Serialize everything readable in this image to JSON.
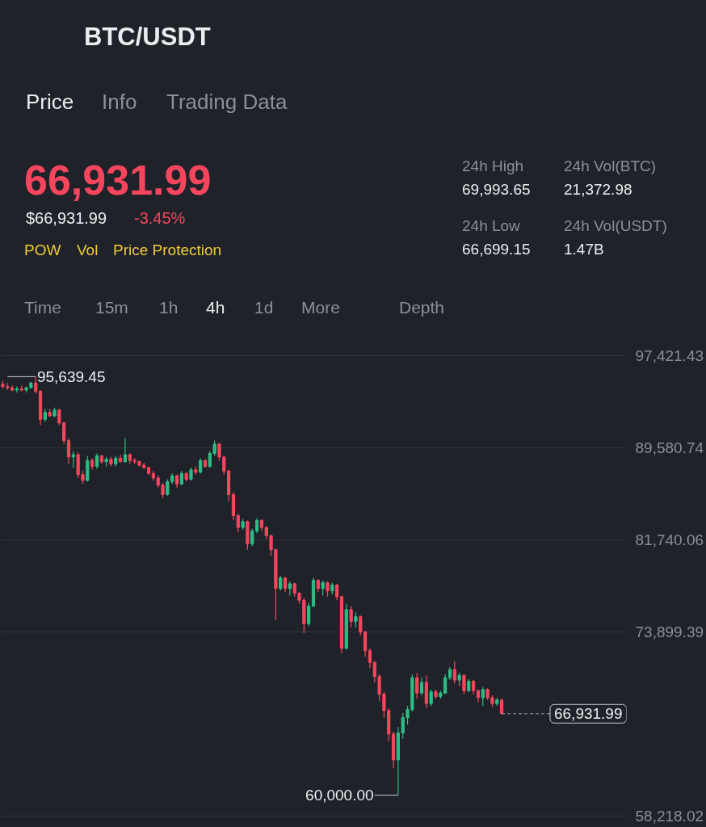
{
  "chart_data": {
    "type": "candlestick",
    "title": "BTC/USDT",
    "categories": [
      null,
      null,
      null,
      null,
      null,
      null,
      null,
      null,
      null,
      null,
      null,
      null,
      null,
      null,
      null,
      null,
      null,
      null,
      null,
      null,
      null,
      null,
      null,
      null,
      null,
      null,
      null,
      null,
      null,
      null,
      null,
      null,
      null,
      null,
      null,
      null,
      null,
      null,
      null,
      null,
      null,
      null,
      null,
      null,
      null,
      null,
      null,
      null,
      null,
      null,
      null,
      null,
      null,
      null,
      null,
      null,
      null,
      null,
      null,
      null,
      null,
      null,
      null,
      null,
      null,
      null,
      null,
      null,
      null,
      null,
      null,
      null,
      null,
      null,
      null,
      null,
      null,
      null,
      null,
      null,
      null,
      null,
      null,
      null,
      null,
      null,
      null,
      null,
      null,
      null,
      null,
      null,
      null,
      null,
      null,
      null,
      null,
      null,
      null,
      null,
      null,
      null,
      null,
      null,
      null,
      null,
      null,
      null,
      null,
      null,
      null,
      null,
      null,
      null,
      null,
      null,
      null,
      null,
      null,
      null,
      null,
      null,
      null,
      null,
      null,
      null,
      null,
      null,
      null,
      null,
      null,
      null,
      null
    ],
    "ohlc": [
      [
        95000,
        95300,
        94600,
        94800
      ],
      [
        94800,
        95100,
        94500,
        94700
      ],
      [
        94700,
        94900,
        94400,
        94500
      ],
      [
        94500,
        94800,
        94300,
        94600
      ],
      [
        94600,
        94900,
        94400,
        94500
      ],
      [
        94500,
        94800,
        94300,
        94700
      ],
      [
        94700,
        95200,
        94600,
        95100
      ],
      [
        95100,
        95639.45,
        94200,
        94400
      ],
      [
        94400,
        94500,
        91500,
        92000
      ],
      [
        92000,
        92900,
        91800,
        92600
      ],
      [
        92600,
        92900,
        92200,
        92300
      ],
      [
        92300,
        93000,
        92200,
        92800
      ],
      [
        92800,
        92900,
        91500,
        91700
      ],
      [
        91700,
        91800,
        89900,
        90200
      ],
      [
        90200,
        90400,
        88200,
        88800
      ],
      [
        88800,
        89300,
        87900,
        89000
      ],
      [
        89000,
        89200,
        87000,
        87300
      ],
      [
        87300,
        87600,
        86500,
        86800
      ],
      [
        86800,
        88900,
        86700,
        88500
      ],
      [
        88500,
        88700,
        87700,
        88000
      ],
      [
        88000,
        89100,
        87800,
        88900
      ],
      [
        88900,
        89000,
        88200,
        88400
      ],
      [
        88400,
        88800,
        88000,
        88600
      ],
      [
        88600,
        88800,
        88000,
        88200
      ],
      [
        88200,
        88900,
        88000,
        88700
      ],
      [
        88700,
        89000,
        88300,
        88400
      ],
      [
        88400,
        90400,
        88300,
        89000
      ],
      [
        89000,
        89100,
        88200,
        88500
      ],
      [
        88500,
        88700,
        88200,
        88400
      ],
      [
        88400,
        88500,
        88000,
        88100
      ],
      [
        88100,
        88300,
        87800,
        87900
      ],
      [
        87900,
        88000,
        87300,
        87400
      ],
      [
        87400,
        87600,
        86800,
        87000
      ],
      [
        87000,
        87200,
        86200,
        86400
      ],
      [
        86400,
        86600,
        85300,
        85600
      ],
      [
        85600,
        86900,
        85500,
        86700
      ],
      [
        86700,
        87400,
        86500,
        87200
      ],
      [
        87200,
        87300,
        86200,
        86500
      ],
      [
        86500,
        87600,
        86400,
        87400
      ],
      [
        87400,
        87500,
        86700,
        86900
      ],
      [
        86900,
        87900,
        86800,
        87700
      ],
      [
        87700,
        88000,
        87300,
        87500
      ],
      [
        87500,
        88700,
        87400,
        88500
      ],
      [
        88500,
        88600,
        87900,
        88000
      ],
      [
        88000,
        89300,
        87900,
        89100
      ],
      [
        89100,
        90200,
        88900,
        89900
      ],
      [
        89900,
        90000,
        88500,
        88800
      ],
      [
        88800,
        88900,
        87300,
        87600
      ],
      [
        87600,
        87700,
        85000,
        85600
      ],
      [
        85600,
        85800,
        83400,
        83800
      ],
      [
        83800,
        84000,
        82400,
        82800
      ],
      [
        82800,
        83500,
        82600,
        83300
      ],
      [
        83300,
        83400,
        80900,
        81400
      ],
      [
        81400,
        82700,
        81200,
        82500
      ],
      [
        82500,
        83600,
        82300,
        83400
      ],
      [
        83400,
        83500,
        82500,
        82800
      ],
      [
        82800,
        82900,
        81800,
        82100
      ],
      [
        82100,
        82200,
        80400,
        80900
      ],
      [
        80900,
        81000,
        74900,
        77600
      ],
      [
        77600,
        78700,
        77400,
        78500
      ],
      [
        78500,
        78600,
        77300,
        77600
      ],
      [
        77600,
        78200,
        77000,
        78000
      ],
      [
        78000,
        78100,
        76900,
        77200
      ],
      [
        77200,
        77300,
        76300,
        76600
      ],
      [
        76600,
        76800,
        73800,
        74600
      ],
      [
        74600,
        76400,
        74400,
        76100
      ],
      [
        76100,
        78500,
        76000,
        78300
      ],
      [
        78300,
        78400,
        77300,
        77600
      ],
      [
        77600,
        78300,
        77000,
        78100
      ],
      [
        78100,
        78200,
        76900,
        77400
      ],
      [
        77400,
        78100,
        77100,
        77900
      ],
      [
        77900,
        78000,
        76600,
        76900
      ],
      [
        76900,
        77000,
        72100,
        72500
      ],
      [
        72500,
        76300,
        72400,
        75800
      ],
      [
        75800,
        76100,
        74300,
        74800
      ],
      [
        74800,
        75600,
        74300,
        75200
      ],
      [
        75200,
        75300,
        73600,
        73900
      ],
      [
        73900,
        74000,
        71800,
        72300
      ],
      [
        72300,
        72500,
        70800,
        71300
      ],
      [
        71300,
        71400,
        69600,
        70100
      ],
      [
        70100,
        70300,
        68000,
        68600
      ],
      [
        68600,
        68800,
        66600,
        67200
      ],
      [
        67200,
        67400,
        64600,
        65200
      ],
      [
        65200,
        65400,
        62300,
        63000
      ],
      [
        63000,
        65800,
        60000,
        65300
      ],
      [
        65300,
        67000,
        64800,
        66600
      ],
      [
        66600,
        67600,
        66000,
        67300
      ],
      [
        67300,
        70300,
        67100,
        70000
      ],
      [
        70000,
        70400,
        68200,
        68700
      ],
      [
        68700,
        70000,
        68500,
        69600
      ],
      [
        69600,
        70200,
        67400,
        67800
      ],
      [
        67800,
        69000,
        67600,
        68800
      ],
      [
        68800,
        69000,
        68200,
        68400
      ],
      [
        68400,
        68900,
        68200,
        68700
      ],
      [
        68700,
        70300,
        68600,
        70000
      ],
      [
        70000,
        70900,
        69800,
        70700
      ],
      [
        70700,
        71400,
        69500,
        69800
      ],
      [
        69800,
        70400,
        69300,
        70200
      ],
      [
        70200,
        70300,
        68600,
        68900
      ],
      [
        68900,
        69900,
        68800,
        69700
      ],
      [
        69700,
        69800,
        68600,
        68900
      ],
      [
        68900,
        69000,
        67900,
        68300
      ],
      [
        68300,
        69200,
        67600,
        69000
      ],
      [
        69000,
        69100,
        68100,
        68300
      ],
      [
        68300,
        68500,
        67500,
        67800
      ],
      [
        67800,
        68300,
        67600,
        68100
      ],
      [
        68100,
        68200,
        66931.99,
        66931.99
      ],
      null,
      null,
      null,
      null,
      null,
      null,
      null,
      null,
      null,
      null,
      null,
      null,
      null,
      null,
      null,
      null,
      null,
      null,
      null,
      null,
      null,
      null,
      null,
      null,
      null,
      null
    ],
    "colors": [
      "#f6465d",
      "#f6465d",
      "#f6465d",
      "#2ebd85",
      "#f6465d",
      "#2ebd85",
      "#2ebd85",
      "#f6465d",
      "#f6465d",
      "#2ebd85",
      "#f6465d",
      "#2ebd85",
      "#f6465d",
      "#f6465d",
      "#f6465d",
      "#2ebd85",
      "#f6465d",
      "#f6465d",
      "#2ebd85",
      "#f6465d",
      "#2ebd85",
      "#f6465d",
      "#2ebd85",
      "#f6465d",
      "#2ebd85",
      "#f6465d",
      "#2ebd85",
      "#f6465d",
      "#f6465d",
      "#f6465d",
      "#f6465d",
      "#f6465d",
      "#f6465d",
      "#f6465d",
      "#f6465d",
      "#2ebd85",
      "#2ebd85",
      "#f6465d",
      "#2ebd85",
      "#f6465d",
      "#2ebd85",
      "#f6465d",
      "#2ebd85",
      "#f6465d",
      "#2ebd85",
      "#2ebd85",
      "#f6465d",
      "#f6465d",
      "#f6465d",
      "#f6465d",
      "#f6465d",
      "#2ebd85",
      "#f6465d",
      "#2ebd85",
      "#2ebd85",
      "#f6465d",
      "#f6465d",
      "#f6465d",
      "#f6465d",
      "#2ebd85",
      "#f6465d",
      "#2ebd85",
      "#f6465d",
      "#f6465d",
      "#f6465d",
      "#2ebd85",
      "#2ebd85",
      "#f6465d",
      "#2ebd85",
      "#f6465d",
      "#2ebd85",
      "#f6465d",
      "#f6465d",
      "#2ebd85",
      "#f6465d",
      "#2ebd85",
      "#f6465d",
      "#f6465d",
      "#f6465d",
      "#f6465d",
      "#f6465d",
      "#f6465d",
      "#f6465d",
      "#f6465d",
      "#2ebd85",
      "#2ebd85",
      "#2ebd85",
      "#2ebd85",
      "#f6465d",
      "#2ebd85",
      "#f6465d",
      "#2ebd85",
      "#f6465d",
      "#2ebd85",
      "#2ebd85",
      "#2ebd85",
      "#f6465d",
      "#2ebd85",
      "#f6465d",
      "#2ebd85",
      "#f6465d",
      "#f6465d",
      "#2ebd85",
      "#f6465d",
      "#f6465d",
      "#2ebd85",
      "#f6465d",
      null,
      null,
      null,
      null,
      null,
      null,
      null,
      null,
      null,
      null,
      null,
      null,
      null,
      null,
      null,
      null,
      null,
      null,
      null,
      null,
      null,
      null,
      null,
      null,
      null,
      null
    ],
    "ylim": [
      57254,
      99622
    ],
    "yticks": [
      {
        "value": 97421.43,
        "label": "97,421.43"
      },
      {
        "value": 89580.74,
        "label": "89,580.74"
      },
      {
        "value": 81740.06,
        "label": "81,740.06"
      },
      {
        "value": 73899.39,
        "label": "73,899.39"
      },
      {
        "value": 58218.02,
        "label": "58,218.02"
      }
    ],
    "grid": "y",
    "tick_labels": "y",
    "ref_lines": [
      {
        "axis": "y",
        "value": 66931.99,
        "label": "66,931.99",
        "color": "#9a9ea6",
        "line_style": "dashed"
      }
    ],
    "annotations": [
      "Price",
      "Info",
      "Trading Data",
      "66,931.99",
      "$66,931.99",
      "-3.45%",
      "POW",
      "Vol",
      "Price Protection",
      "24h High",
      "69,993.65",
      "24h Vol(BTC)",
      "21,372.98",
      "24h Low",
      "66,699.15",
      "24h Vol(USDT)",
      "1.47B",
      "Time",
      "15m",
      "1h",
      "4h",
      "1d",
      "More",
      "Depth",
      "95,639.45",
      "60,000.00"
    ]
  }
}
